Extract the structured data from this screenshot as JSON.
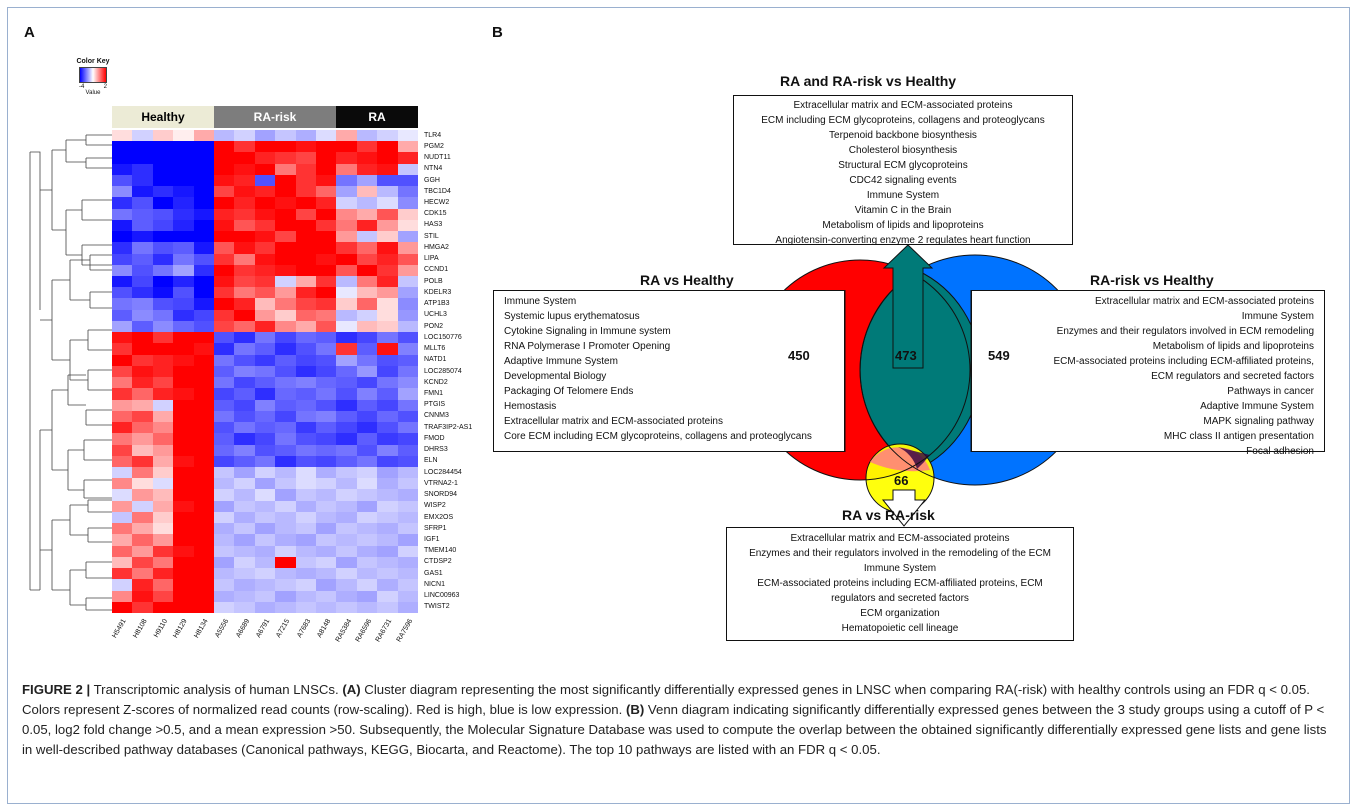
{
  "panel_a_label": "A",
  "panel_b_label": "B",
  "color_key": {
    "title": "Color Key",
    "min": "-4",
    "max": "2",
    "value_label": "Value"
  },
  "groups": [
    "Healthy",
    "RA-risk",
    "RA"
  ],
  "genes": [
    "TLR4",
    "PGM2",
    "NUDT11",
    "NTN4",
    "GGH",
    "TBC1D4",
    "HECW2",
    "CDK15",
    "HAS3",
    "STIL",
    "HMGA2",
    "LIPA",
    "CCND1",
    "POLB",
    "KDELR3",
    "ATP1B3",
    "UCHL3",
    "PON2",
    "LOC150776",
    "MLLT6",
    "NATD1",
    "LOC285074",
    "KCND2",
    "FMN1",
    "PTGIS",
    "CNNM3",
    "TRAF3IP2-AS1",
    "FMOD",
    "DHRS3",
    "ELN",
    "LOC284454",
    "VTRNA2-1",
    "SNORD94",
    "WISP2",
    "EMX2OS",
    "SFRP1",
    "IGF1",
    "TMEM140",
    "CTDSP2",
    "GAS1",
    "NICN1",
    "LINC00963",
    "TWIST2"
  ],
  "samples": [
    "H5491",
    "H8108",
    "H9110",
    "H8129",
    "H8134",
    "A5556",
    "A6689",
    "A6791",
    "A7215",
    "A7683",
    "A8148",
    "RA5384",
    "RA6596",
    "RA6731",
    "RA7596"
  ],
  "chart_data": {
    "type": "heatmap",
    "rows": "genes",
    "columns": "samples",
    "color_scale": {
      "low": "#0000ff",
      "mid": "#ffffff",
      "high": "#ff0000",
      "min": -4,
      "max": 2
    },
    "values": [
      [
        0.2,
        -0.4,
        0.3,
        0.1,
        0.5,
        -0.6,
        -0.4,
        -0.8,
        -0.5,
        -0.7,
        -0.3,
        0.5,
        -0.6,
        -0.4,
        -0.2
      ],
      [
        -2.5,
        -2.2,
        -3,
        -3,
        -2.8,
        1.5,
        1.2,
        1.8,
        1.6,
        1.4,
        1.7,
        1.5,
        1.2,
        1.6,
        0.5
      ],
      [
        -2.2,
        -2.4,
        -3,
        -3,
        -3,
        1.7,
        1.5,
        1.3,
        1.2,
        1.1,
        1.6,
        1.3,
        1.4,
        1.7,
        1.3
      ],
      [
        -2,
        -1.8,
        -2.6,
        -2.7,
        -3,
        1.6,
        1.4,
        1.7,
        0.8,
        1.2,
        1.5,
        0.8,
        1.3,
        1.4,
        -0.5
      ],
      [
        -1.5,
        -1.8,
        -2.4,
        -2.6,
        -3,
        1.4,
        1.3,
        -1.5,
        1.6,
        1.2,
        1.4,
        -1.2,
        -0.8,
        -1.5,
        -1.5
      ],
      [
        -1,
        -2,
        -1.8,
        -2,
        -2.2,
        1.1,
        1.4,
        1.3,
        1.5,
        1.2,
        0.9,
        -0.8,
        0.4,
        -0.6,
        -1.2
      ],
      [
        -1.8,
        -1.5,
        -2.2,
        -1.9,
        -2.5,
        1.5,
        1.3,
        1.6,
        1.4,
        1.8,
        1.3,
        -0.4,
        -0.6,
        -0.3,
        -1
      ],
      [
        -1.2,
        -1.4,
        -1.5,
        -1.8,
        -2,
        1.3,
        1.2,
        1.4,
        1.6,
        1.1,
        1.5,
        0.7,
        0.5,
        1,
        0.3
      ],
      [
        -2,
        -1.4,
        -1.6,
        -1.9,
        -2.2,
        1.4,
        1,
        1.2,
        1.5,
        1.6,
        1.2,
        0.8,
        1.3,
        0.6,
        0.2
      ],
      [
        -2.4,
        -2,
        -2.5,
        -2.3,
        -2.8,
        1.6,
        1.5,
        1.4,
        1.1,
        1.8,
        1.7,
        0.6,
        -0.5,
        0.3,
        -0.8
      ],
      [
        -1.8,
        -1.2,
        -1.5,
        -1.4,
        -2,
        1,
        1.4,
        1.2,
        1.6,
        1.7,
        1.5,
        1.2,
        0.9,
        1.4,
        0.6
      ],
      [
        -1.6,
        -1.4,
        -1.8,
        -1.2,
        -1.5,
        1.2,
        0.8,
        1.4,
        1.7,
        1.6,
        1.4,
        1.5,
        1.1,
        1.3,
        1
      ],
      [
        -1,
        -1.5,
        -1.2,
        -0.8,
        -1.8,
        1.6,
        1.2,
        1.3,
        1.4,
        1.5,
        1.8,
        1,
        1.5,
        1.2,
        0.6
      ],
      [
        -2,
        -1.6,
        -2.2,
        -1.9,
        -2.5,
        1.4,
        1.1,
        1.2,
        -0.4,
        0.5,
        1.2,
        -0.6,
        0.8,
        1.3,
        -0.5
      ],
      [
        -1.5,
        -1.8,
        -2.1,
        -1.5,
        -2.3,
        1.2,
        0.8,
        1,
        0.6,
        1.3,
        1.5,
        -0.2,
        0.4,
        0.6,
        -0.8
      ],
      [
        -1.2,
        -1.1,
        -1.5,
        -1.6,
        -2,
        1.5,
        1.3,
        0.4,
        0.8,
        1.1,
        1.2,
        0.3,
        0.9,
        0.2,
        -1
      ],
      [
        -1.4,
        -1,
        -1.2,
        -1.8,
        -1.6,
        1.2,
        1.5,
        0.6,
        0.3,
        0.9,
        0.8,
        -0.6,
        -0.4,
        0.2,
        -0.9
      ],
      [
        -0.8,
        -1.4,
        -1,
        -1.3,
        -1.5,
        1.1,
        0.9,
        1.3,
        0.7,
        0.5,
        1,
        -0.2,
        0.4,
        0.3,
        -0.6
      ],
      [
        1.4,
        1.6,
        1.2,
        1.5,
        1.8,
        -1.5,
        -1.8,
        -1.2,
        -1.6,
        -1.3,
        -1.4,
        -1.8,
        -1.6,
        -1.2,
        -1.5
      ],
      [
        1.2,
        1.5,
        1.7,
        1.8,
        1.4,
        -1.8,
        -1.2,
        -1.4,
        -1.8,
        -1.5,
        -1.2,
        1.2,
        -1.4,
        1.4,
        -1.1
      ],
      [
        1.6,
        1.2,
        1.3,
        1.4,
        1.7,
        -1.2,
        -1.5,
        -1.7,
        -1.4,
        -1.6,
        -1.5,
        -0.8,
        -1.2,
        -1.5,
        -1.4
      ],
      [
        1.1,
        1.4,
        1.3,
        1.6,
        1.5,
        -1.4,
        -1.1,
        -1.2,
        -1.5,
        -1.8,
        -1.6,
        -1.3,
        -0.9,
        -1.6,
        -1.2
      ],
      [
        0.8,
        1.3,
        1.1,
        1.5,
        1.7,
        -1.2,
        -1.6,
        -1.4,
        -1.2,
        -1.1,
        -1.3,
        -1.4,
        -1.6,
        -1.2,
        -1
      ],
      [
        1.2,
        0.9,
        1.3,
        1.4,
        1.6,
        -1.6,
        -1.4,
        -1.8,
        -1.3,
        -1.4,
        -1.2,
        -1.5,
        -1.1,
        -1.4,
        -0.8
      ],
      [
        0.6,
        0.5,
        -0.4,
        1.6,
        1.8,
        -1.4,
        -1.6,
        -1.1,
        -1.4,
        -1.3,
        -1.5,
        -1.8,
        -1.4,
        -1.6,
        -1.2
      ],
      [
        0.9,
        1.1,
        0.5,
        1.5,
        1.6,
        -1.2,
        -1.5,
        -1.3,
        -1.6,
        -1.2,
        -1.1,
        -1.4,
        -1.6,
        -1.3,
        -1.5
      ],
      [
        1.3,
        0.9,
        0.7,
        1.7,
        1.6,
        -1.5,
        -1.2,
        -1.4,
        -1.3,
        -1.7,
        -1.4,
        -1.6,
        -1.8,
        -1.5,
        -1.2
      ],
      [
        0.8,
        0.6,
        0.9,
        1.8,
        1.9,
        -1.4,
        -1.8,
        -1.6,
        -1.2,
        -1.5,
        -1.6,
        -1.8,
        -1.4,
        -1.7,
        -1.6
      ],
      [
        1.1,
        0.4,
        0.6,
        1.5,
        1.7,
        -1.3,
        -1.1,
        -1.5,
        -1.4,
        -1.2,
        -1.3,
        -1.2,
        -1.5,
        -1.1,
        -1.4
      ],
      [
        0.9,
        1.2,
        0.5,
        1.4,
        1.8,
        -1.6,
        -1.4,
        -1.2,
        -1.8,
        -1.5,
        -1.6,
        -1.4,
        -1.2,
        -1.6,
        -1.5
      ],
      [
        -0.4,
        0.8,
        0.3,
        1.6,
        1.7,
        -0.5,
        -0.8,
        -0.4,
        -0.6,
        -0.3,
        -0.7,
        -0.5,
        -0.4,
        -0.8,
        -0.6
      ],
      [
        0.7,
        0.2,
        -0.3,
        1.5,
        1.8,
        -0.6,
        -0.4,
        -0.8,
        -0.5,
        -0.3,
        -0.4,
        -0.6,
        -0.3,
        -0.7,
        -0.5
      ],
      [
        -0.3,
        0.6,
        0.4,
        1.6,
        1.5,
        -0.4,
        -0.6,
        -0.3,
        -0.8,
        -0.5,
        -0.6,
        -0.4,
        -0.5,
        -0.6,
        -0.7
      ],
      [
        0.6,
        -0.4,
        0.5,
        1.4,
        1.7,
        -0.8,
        -0.5,
        -0.6,
        -0.4,
        -0.7,
        -0.5,
        -0.6,
        -0.8,
        -0.4,
        -0.5
      ],
      [
        -0.5,
        0.8,
        0.3,
        1.7,
        1.6,
        -0.4,
        -0.7,
        -0.5,
        -0.6,
        -0.4,
        -0.6,
        -0.7,
        -0.4,
        -0.5,
        -0.6
      ],
      [
        0.8,
        0.5,
        0.2,
        1.6,
        1.8,
        -0.7,
        -0.5,
        -0.8,
        -0.6,
        -0.5,
        -0.8,
        -0.5,
        -0.6,
        -0.7,
        -0.5
      ],
      [
        0.5,
        0.9,
        0.6,
        1.5,
        1.6,
        -0.6,
        -0.8,
        -0.5,
        -0.7,
        -0.8,
        -0.5,
        -0.6,
        -0.5,
        -0.6,
        -0.8
      ],
      [
        0.9,
        0.6,
        1.2,
        1.4,
        1.5,
        -0.5,
        -0.6,
        -0.7,
        -0.4,
        -0.6,
        -0.7,
        -0.5,
        -0.7,
        -0.8,
        -0.4
      ],
      [
        0.4,
        1.1,
        0.8,
        1.7,
        1.6,
        -0.8,
        -0.4,
        -0.6,
        1.5,
        -0.5,
        -0.4,
        -0.8,
        -0.5,
        -0.6,
        -0.7
      ],
      [
        1.2,
        0.8,
        1.3,
        1.5,
        1.7,
        -0.6,
        -0.5,
        -0.4,
        -0.6,
        -0.7,
        -0.6,
        -0.4,
        -0.6,
        -0.5,
        -0.6
      ],
      [
        -0.4,
        1.3,
        0.9,
        1.8,
        1.6,
        -0.5,
        -0.7,
        -0.6,
        -0.5,
        -0.4,
        -0.8,
        -0.6,
        -0.4,
        -0.7,
        -0.5
      ],
      [
        0.7,
        1.4,
        1.1,
        1.6,
        1.8,
        -0.7,
        -0.6,
        -0.5,
        -0.8,
        -0.6,
        -0.5,
        -0.7,
        -0.8,
        -0.4,
        -0.6
      ],
      [
        1.5,
        1.2,
        1.6,
        1.7,
        1.5,
        -0.4,
        -0.5,
        -0.7,
        -0.6,
        -0.5,
        -0.6,
        -0.5,
        -0.6,
        -0.5,
        -0.7
      ]
    ]
  },
  "venn": {
    "titles": {
      "top": "RA and RA-risk vs Healthy",
      "left": "RA vs Healthy",
      "right": "RA-risk vs Healthy",
      "bottom": "RA vs RA-risk"
    },
    "counts": {
      "ra_only": "450",
      "overlap": "473",
      "risk_only": "549",
      "ra_vs_risk": "66"
    },
    "colors": {
      "ra": "#ff0000",
      "risk": "#0070ff",
      "overlap": "#008080",
      "ra_vs_risk": "#ffff00"
    },
    "top_items": [
      "Extracellular matrix and ECM-associated proteins",
      "ECM including ECM glycoproteins, collagens and proteoglycans",
      "Terpenoid backbone biosynthesis",
      "Cholesterol biosynthesis",
      "Structural ECM glycoproteins",
      "CDC42 signaling events",
      "Immune System",
      "Vitamin C in the Brain",
      "Metabolism of lipids and lipoproteins",
      "Angiotensin-converting enzyme 2 regulates heart function"
    ],
    "left_items": [
      "Immune System",
      "Systemic lupus erythematosus",
      "Cytokine Signaling in Immune system",
      "RNA Polymerase I Promoter Opening",
      "Adaptive Immune System",
      "Developmental Biology",
      "Packaging Of Telomere Ends",
      "Hemostasis",
      "Extracellular matrix and ECM-associated proteins",
      "Core ECM including ECM glycoproteins, collagens and proteoglycans"
    ],
    "right_items": [
      "Extracellular matrix and ECM-associated proteins",
      "Immune System",
      "Enzymes and their regulators involved in ECM remodeling",
      "Metabolism of lipids and lipoproteins",
      "ECM-associated proteins including ECM-affiliated proteins,",
      "ECM regulators and secreted factors",
      "Pathways in cancer",
      "Adaptive Immune System",
      "MAPK signaling pathway",
      "MHC class II antigen presentation",
      "Focal adhesion"
    ],
    "bottom_items": [
      "Extracellular matrix and ECM-associated proteins",
      "Enzymes and their regulators involved in the remodeling of the ECM",
      "Immune System",
      "ECM-associated proteins including ECM-affiliated proteins, ECM",
      "regulators and secreted factors",
      "ECM organization",
      "Hematopoietic cell lineage"
    ]
  },
  "caption": {
    "figure": "FIGURE 2 |",
    "s1": " Transcriptomic analysis of human LNSCs. ",
    "a": "(A)",
    "s2": " Cluster diagram representing the most significantly differentially expressed genes in LNSC when comparing RA(-risk) with healthy controls using an FDR q < 0.05. Colors represent Z-scores of normalized read counts (row-scaling). Red is high, blue is low expression. ",
    "b": "(B)",
    "s3": " Venn diagram indicating significantly differentially expressed genes between the 3 study groups using a cutoff of P < 0.05, log2 fold change >0.5, and a mean expression >50. Subsequently, the Molecular Signature Database was used to compute the overlap between the obtained significantly differentially expressed gene lists and gene lists in well-described pathway databases (Canonical pathways, KEGG, Biocarta, and Reactome). The top 10 pathways are listed with an FDR q < 0.05."
  }
}
